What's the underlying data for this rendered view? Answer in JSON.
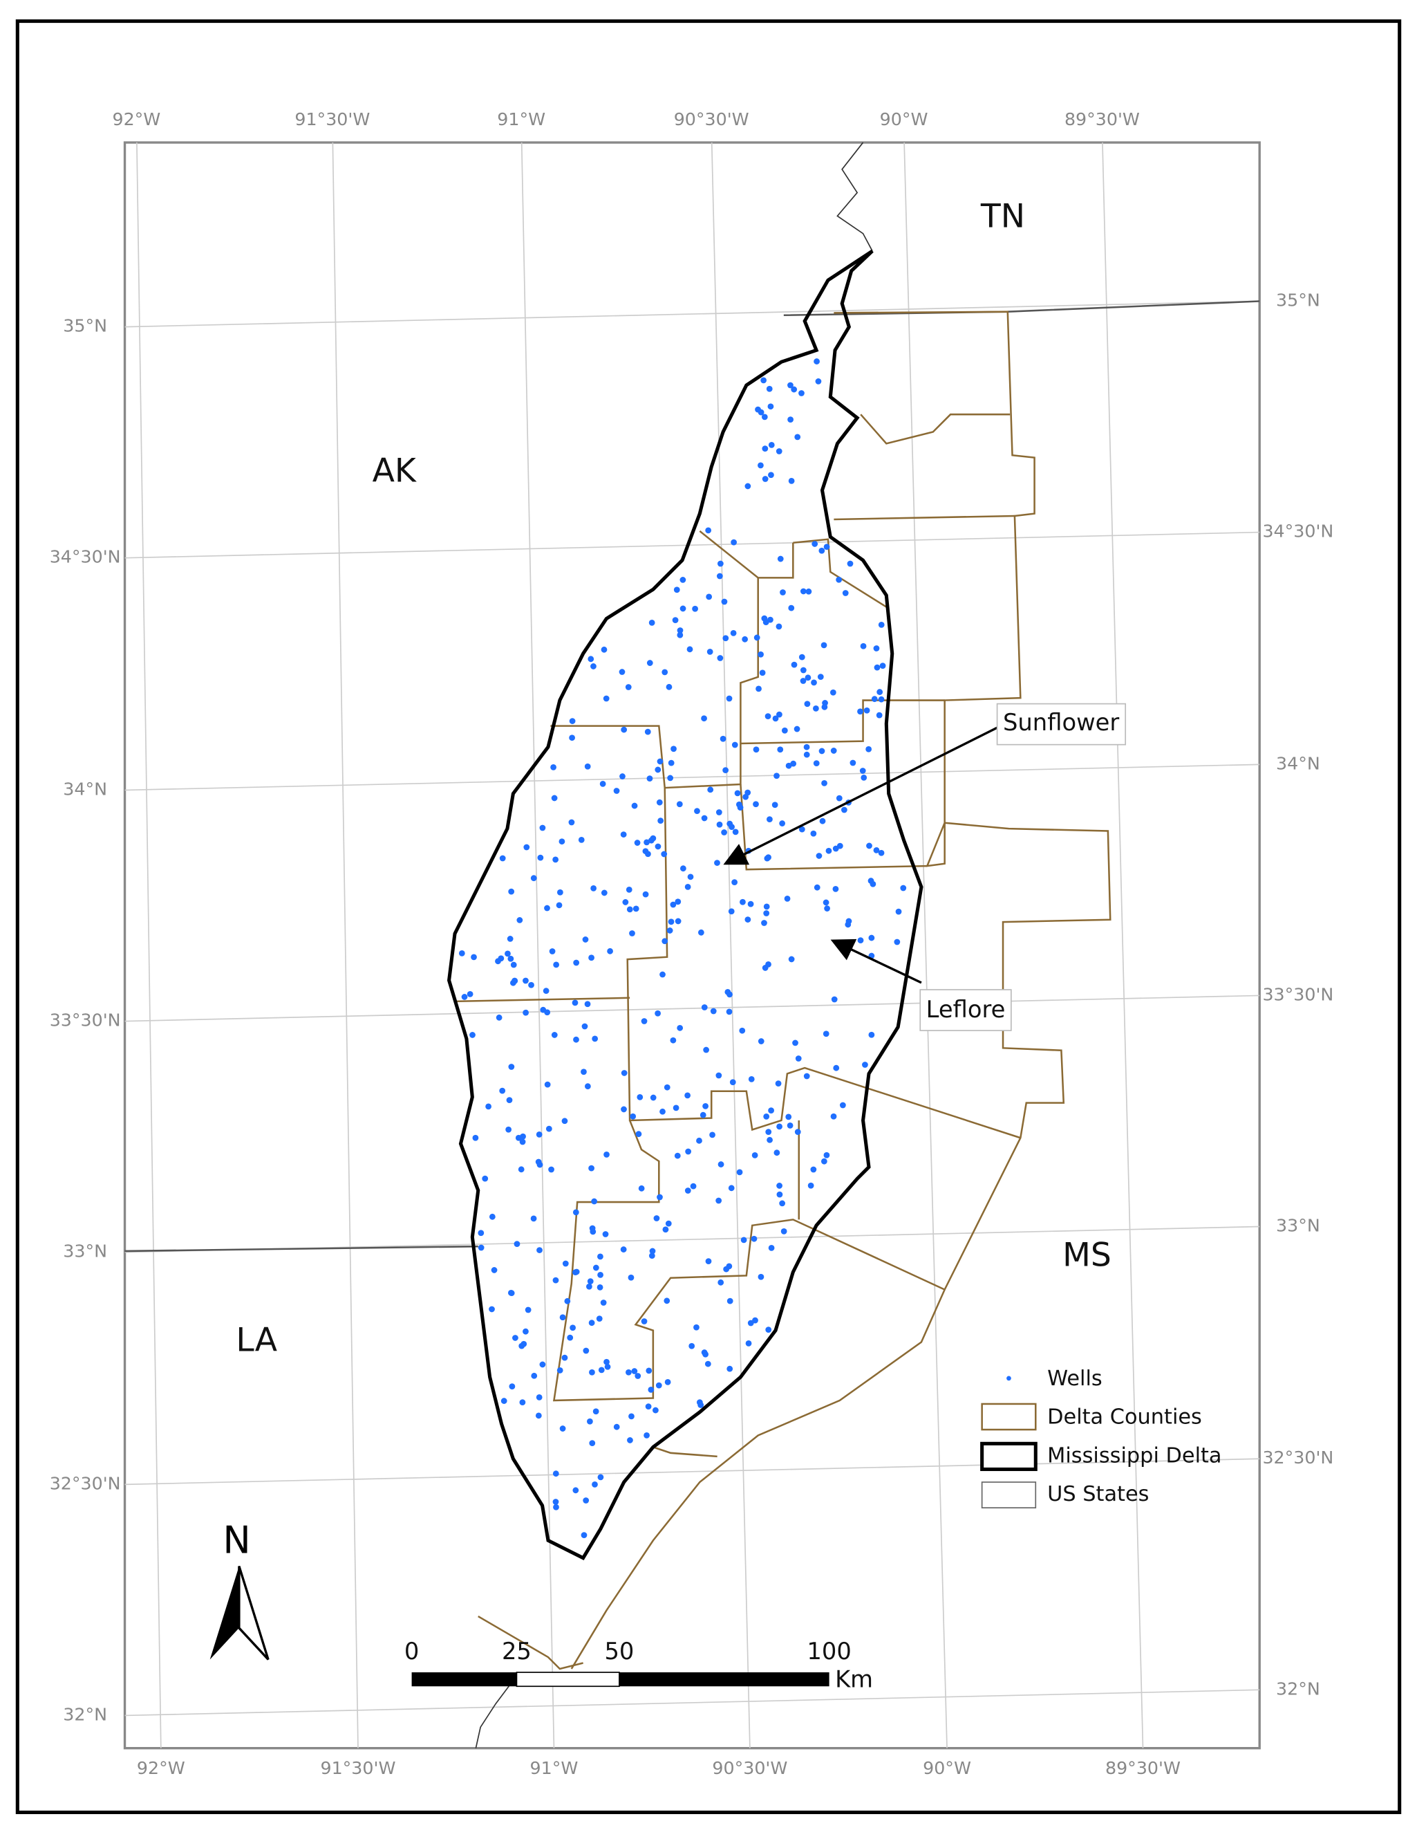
{
  "graticule": {
    "top": [
      "92°W",
      "91°30'W",
      "91°W",
      "90°30'W",
      "90°W",
      "89°30'W"
    ],
    "bottom": [
      "92°W",
      "91°30'W",
      "91°W",
      "90°30'W",
      "90°W",
      "89°30'W"
    ],
    "left": [
      "35°N",
      "34°30'N",
      "34°N",
      "33°30'N",
      "33°N",
      "32°30'N",
      "32°N"
    ],
    "right": [
      "35°N",
      "34°30'N",
      "34°N",
      "33°30'N",
      "33°N",
      "32°30'N",
      "32°N"
    ]
  },
  "states": [
    "TN",
    "AK",
    "MS",
    "LA"
  ],
  "annotations": [
    "Sunflower",
    "Leflore"
  ],
  "legend": [
    "Wells",
    "Delta Counties",
    "Mississippi Delta",
    "US States"
  ],
  "scale_bar": {
    "labels": [
      "0",
      "25",
      "50",
      "100"
    ],
    "unit": "Km"
  },
  "north_arrow": "N"
}
